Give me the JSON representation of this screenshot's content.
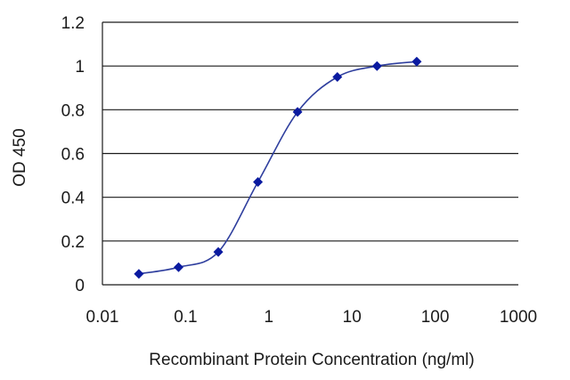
{
  "chart_data": {
    "type": "scatter",
    "xlabel": "Recombinant Protein Concentration (ng/ml)",
    "ylabel": "OD 450",
    "x_scale": "log",
    "xlim": [
      0.01,
      1000
    ],
    "ylim": [
      0,
      1.2
    ],
    "x_ticks": [
      "0.01",
      "0.1",
      "1",
      "10",
      "100",
      "1000"
    ],
    "y_ticks": [
      "0",
      "0.2",
      "0.4",
      "0.6",
      "0.8",
      "1",
      "1.2"
    ],
    "grid": "horizontal",
    "series": [
      {
        "x": [
          0.0274,
          0.0823,
          0.247,
          0.741,
          2.22,
          6.67,
          20,
          60
        ],
        "y": [
          0.05,
          0.08,
          0.15,
          0.47,
          0.79,
          0.95,
          1.0,
          1.02
        ],
        "color": "#0a1aa0",
        "line_color": "#2f3f9e",
        "marker": "diamond"
      }
    ]
  }
}
